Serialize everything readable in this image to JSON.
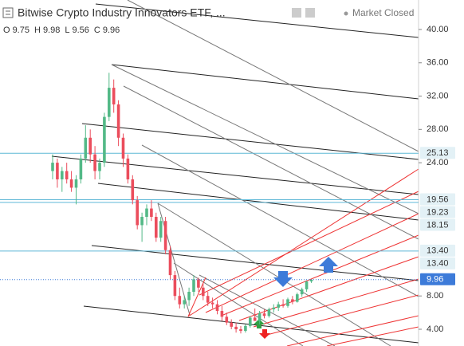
{
  "chart_data": {
    "type": "candlestick",
    "title": "Bitwise Crypto Industry Innovators ETF, ...",
    "status": "Market Closed",
    "ohlc_legend": [
      {
        "label": "O",
        "value": 9.75
      },
      {
        "label": "H",
        "value": 9.98
      },
      {
        "label": "L",
        "value": 9.56
      },
      {
        "label": "C",
        "value": 9.96
      }
    ],
    "up_color": "#53b987",
    "down_color": "#eb4d5c",
    "open": [
      23,
      24,
      22,
      23,
      22,
      21,
      22,
      24.5,
      27,
      25,
      23,
      24,
      29.5,
      33,
      31,
      27,
      24.5,
      22,
      19.5,
      16.5,
      17.5,
      18.5,
      17.5,
      15,
      17,
      13.5,
      10.5,
      8,
      7,
      7.5,
      8.5,
      10,
      9,
      8,
      7.2,
      7,
      6.2,
      5.5,
      4.8,
      4.3,
      4,
      3.8,
      4.4,
      5.4,
      5,
      5.9,
      5.6,
      6.4,
      6.6,
      7,
      6.8,
      7.6,
      7.3,
      8.2,
      8.8,
      9.75
    ],
    "high": [
      25,
      24.5,
      23.5,
      24,
      23,
      22.5,
      25,
      28.5,
      28,
      26,
      24.5,
      30,
      34.8,
      34,
      31.5,
      27.5,
      25,
      22.5,
      20,
      18,
      19,
      19.5,
      18,
      17.5,
      17.5,
      14,
      11,
      9,
      8,
      9,
      10.5,
      10.2,
      9.5,
      8.5,
      7.8,
      7.5,
      6.8,
      6,
      5.2,
      4.8,
      4.4,
      4.6,
      5.6,
      6.5,
      6.2,
      6.4,
      6.6,
      7,
      7.3,
      7.6,
      7.8,
      8,
      8.4,
      9,
      9.8,
      9.98
    ],
    "low": [
      22,
      21,
      20.5,
      21.5,
      20.5,
      19,
      21.5,
      24,
      24,
      22,
      22,
      23.5,
      29,
      30,
      26,
      23.5,
      21.5,
      19,
      16,
      14.5,
      16.5,
      17,
      14.5,
      14.5,
      13,
      10,
      7.5,
      6.5,
      6.5,
      6.8,
      8,
      8.5,
      7.5,
      6.8,
      6.5,
      5.8,
      5,
      4.5,
      4,
      3.6,
      3.5,
      3.6,
      4.2,
      5,
      4.6,
      5.3,
      5.4,
      6,
      6.2,
      6.6,
      6.6,
      7,
      7.2,
      7.9,
      8.5,
      9.56
    ],
    "close": [
      24,
      22,
      23,
      22,
      21,
      22,
      24.5,
      27,
      25,
      23,
      24,
      29.5,
      33,
      31,
      27,
      24.5,
      22,
      19.5,
      16.5,
      17.5,
      18.5,
      17.5,
      15,
      17,
      13.5,
      10.5,
      8,
      7,
      7.5,
      8.5,
      10,
      9,
      8,
      7.2,
      7,
      6.2,
      5.5,
      4.8,
      4.3,
      4,
      3.8,
      4.4,
      5.4,
      5,
      5.9,
      5.6,
      6.4,
      6.6,
      7,
      6.8,
      7.6,
      7.3,
      8.2,
      8.8,
      9.75,
      9.96
    ],
    "ylim": [
      1.99,
      43.54
    ],
    "yticks": [
      {
        "value": 4,
        "label": "4.00"
      },
      {
        "value": 8,
        "label": "8.00"
      },
      {
        "value": 24,
        "label": "24.00"
      },
      {
        "value": 28,
        "label": "28.00"
      },
      {
        "value": 32,
        "label": "32.00"
      },
      {
        "value": 36,
        "label": "36.00"
      },
      {
        "value": 40,
        "label": "40.00"
      }
    ],
    "levels": [
      25.13,
      19.56,
      19.23,
      13.4
    ],
    "level_color": "#5fb8d6",
    "price_labels": [
      {
        "value": 25.13,
        "label": "25.13",
        "color": "#e3f1f6"
      },
      {
        "value": 19.56,
        "label": "19.56",
        "color": "#e3f1f6"
      },
      {
        "value": 19.23,
        "label": "19.23",
        "color": "#e3f1f6"
      },
      {
        "value": 18.15,
        "label": "18.15",
        "color": "#e3f1f6"
      },
      {
        "value": 13.4,
        "label": "13.40",
        "color": "#e3f1f6"
      },
      {
        "value": 13.4,
        "label": "13.40",
        "color": "#e3f1f6"
      },
      {
        "value": 9.96,
        "label": "9.96",
        "color": "#3d7bd9"
      }
    ]
  }
}
